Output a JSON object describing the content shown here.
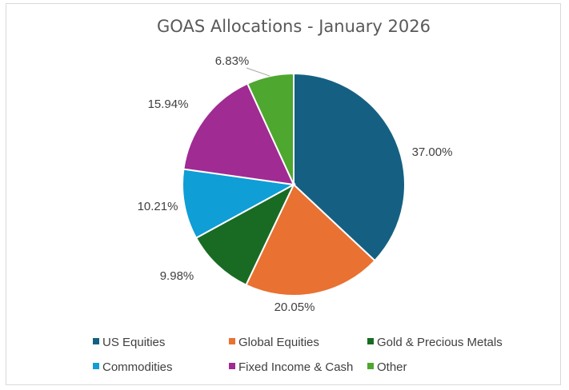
{
  "chart_data": {
    "type": "pie",
    "title": "GOAS Allocations - January 2026",
    "slices": [
      {
        "name": "US Equities",
        "value": 37.0,
        "label": "37.00%",
        "color": "#156082"
      },
      {
        "name": "Global Equities",
        "value": 20.05,
        "label": "20.05%",
        "color": "#e97132"
      },
      {
        "name": "Gold & Precious Metals",
        "value": 9.98,
        "label": "9.98%",
        "color": "#196b24"
      },
      {
        "name": "Commodities",
        "value": 10.21,
        "label": "10.21%",
        "color": "#0f9ed5"
      },
      {
        "name": "Fixed Income & Cash",
        "value": 15.94,
        "label": "15.94%",
        "color": "#a02b93"
      },
      {
        "name": "Other",
        "value": 6.83,
        "label": "6.83%",
        "color": "#4ea72e"
      }
    ],
    "start_angle_deg": 0,
    "direction": "clockwise",
    "legend_position": "bottom"
  }
}
